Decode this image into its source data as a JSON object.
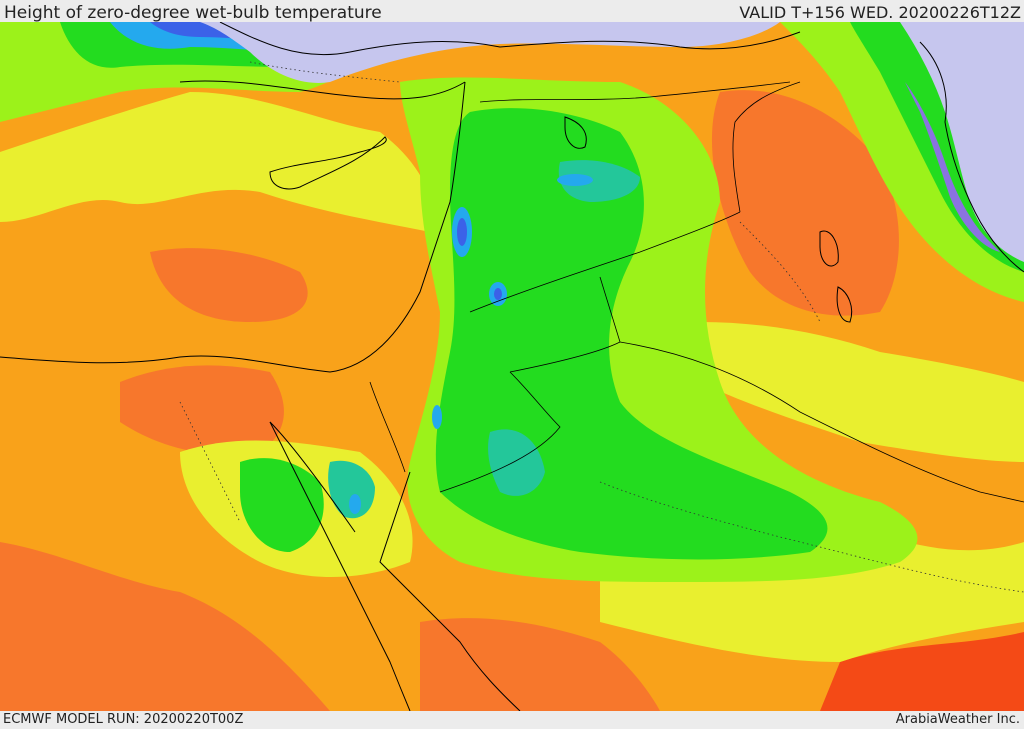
{
  "header": {
    "title": "Height of zero-degree wet-bulb temperature",
    "valid": "VALID T+156 WED. 20200226T12Z"
  },
  "footer": {
    "model_run": "ECMWF MODEL RUN: 20200220T00Z",
    "credit": "ArabiaWeather Inc."
  },
  "map": {
    "palette": {
      "deep_red": "#f44a16",
      "orange_red": "#f7772c",
      "orange": "#f9a21a",
      "yellow": "#e9ef2f",
      "light_green": "#9cf21a",
      "green": "#23dc1f",
      "teal": "#23c79a",
      "cyan": "#24a9ee",
      "blue": "#3b62e8",
      "purple": "#8a73e0",
      "lavender": "#c6c6ee"
    }
  }
}
